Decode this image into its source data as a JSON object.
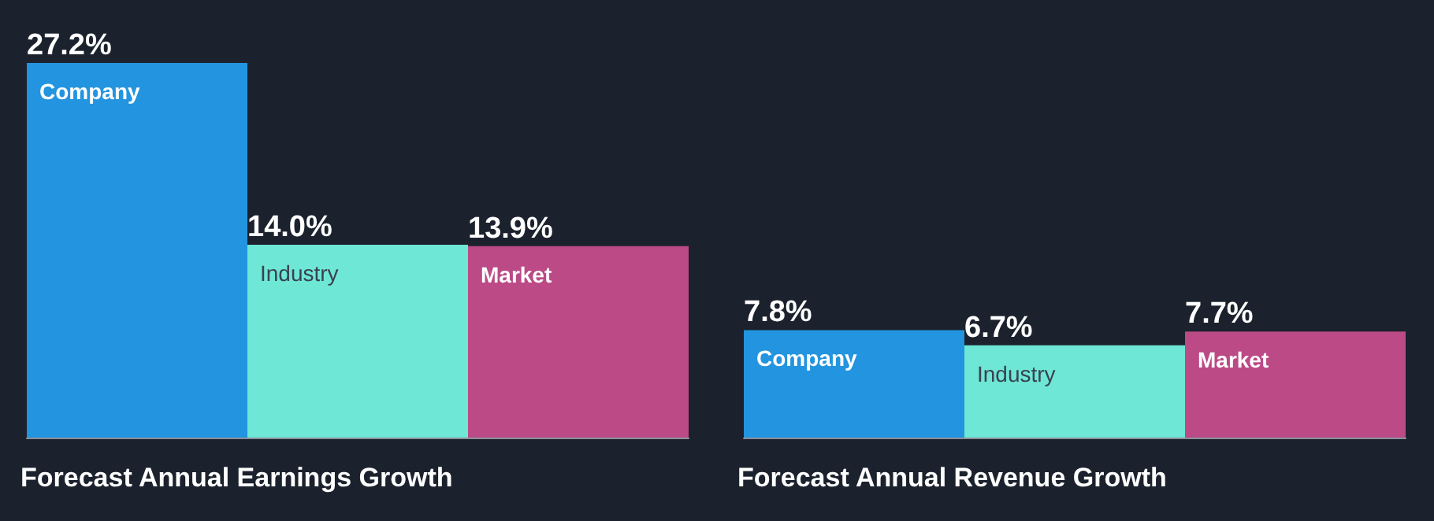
{
  "chart_data": [
    {
      "type": "bar",
      "title": "Forecast Annual Earnings Growth",
      "categories": [
        "Company",
        "Industry",
        "Market"
      ],
      "values": [
        27.2,
        14.0,
        13.9
      ],
      "value_labels": [
        "27.2%",
        "14.0%",
        "13.9%"
      ],
      "colors": [
        "#2394df",
        "#6ee7d6",
        "#bb4a87"
      ]
    },
    {
      "type": "bar",
      "title": "Forecast Annual Revenue Growth",
      "categories": [
        "Company",
        "Industry",
        "Market"
      ],
      "values": [
        7.8,
        6.7,
        7.7
      ],
      "value_labels": [
        "7.8%",
        "6.7%",
        "7.7%"
      ],
      "colors": [
        "#2394df",
        "#6ee7d6",
        "#bb4a87"
      ]
    }
  ]
}
